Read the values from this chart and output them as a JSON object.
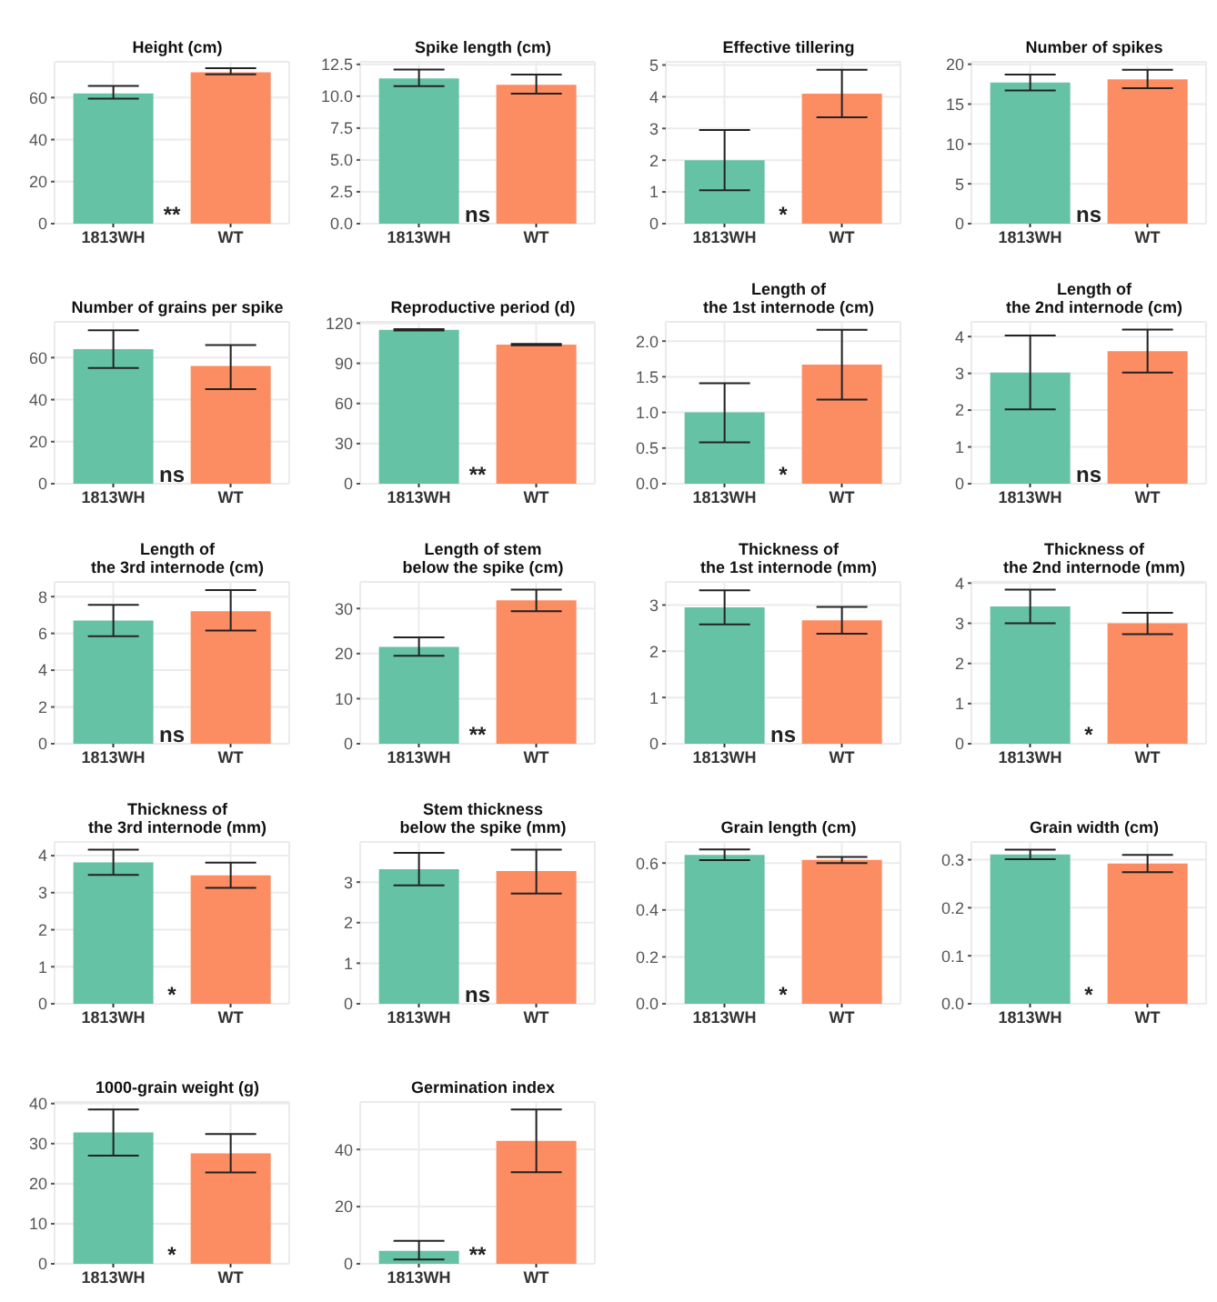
{
  "chart_data": [
    {
      "type": "bar",
      "title": "Height (cm)",
      "categories": [
        "1813WH",
        "WT"
      ],
      "values": [
        62,
        72
      ],
      "errors": [
        [
          59.5,
          65.5
        ],
        [
          71,
          74
        ]
      ],
      "colors": [
        "#66c2a5",
        "#fc8d62"
      ],
      "ylim": [
        0,
        77
      ],
      "yticks": [
        0,
        20,
        40,
        60
      ],
      "grid": true,
      "annotations": [
        "**"
      ]
    },
    {
      "type": "bar",
      "title": "Spike length (cm)",
      "categories": [
        "1813WH",
        "WT"
      ],
      "values": [
        11.4,
        10.9
      ],
      "errors": [
        [
          10.8,
          12.1
        ],
        [
          10.2,
          11.7
        ]
      ],
      "colors": [
        "#66c2a5",
        "#fc8d62"
      ],
      "ylim": [
        0,
        12.7
      ],
      "yticks": [
        {
          "value": 0,
          "label": "0.0"
        },
        {
          "value": 2.5,
          "label": "2.5"
        },
        {
          "value": 5,
          "label": "5.0"
        },
        {
          "value": 7.5,
          "label": "7.5"
        },
        {
          "value": 10,
          "label": "10.0"
        },
        {
          "value": 12.5,
          "label": "12.5"
        }
      ],
      "grid": true,
      "annotations": [
        "ns"
      ]
    },
    {
      "type": "bar",
      "title": "Effective tillering",
      "categories": [
        "1813WH",
        "WT"
      ],
      "values": [
        2.0,
        4.1
      ],
      "errors": [
        [
          1.05,
          2.95
        ],
        [
          3.35,
          4.85
        ]
      ],
      "colors": [
        "#66c2a5",
        "#fc8d62"
      ],
      "ylim": [
        0,
        5.1
      ],
      "yticks": [
        0,
        1,
        2,
        3,
        4,
        5
      ],
      "grid": true,
      "annotations": [
        "*"
      ]
    },
    {
      "type": "bar",
      "title": "Number of spikes",
      "categories": [
        "1813WH",
        "WT"
      ],
      "values": [
        17.7,
        18.1
      ],
      "errors": [
        [
          16.7,
          18.7
        ],
        [
          17,
          19.3
        ]
      ],
      "colors": [
        "#66c2a5",
        "#fc8d62"
      ],
      "ylim": [
        0,
        20.3
      ],
      "yticks": [
        0,
        5,
        10,
        15,
        20
      ],
      "grid": true,
      "annotations": [
        "ns"
      ]
    },
    {
      "type": "bar",
      "title": "Number of grains per spike",
      "categories": [
        "1813WH",
        "WT"
      ],
      "values": [
        64,
        56
      ],
      "errors": [
        [
          55,
          73
        ],
        [
          45,
          66
        ]
      ],
      "colors": [
        "#66c2a5",
        "#fc8d62"
      ],
      "ylim": [
        0,
        77
      ],
      "yticks": [
        0,
        20,
        40,
        60
      ],
      "grid": true,
      "annotations": [
        "ns"
      ]
    },
    {
      "type": "bar",
      "title": "Reproductive period (d)",
      "categories": [
        "1813WH",
        "WT"
      ],
      "values": [
        115,
        104
      ],
      "errors": [
        [
          114.5,
          115.5
        ],
        [
          103.5,
          104.5
        ]
      ],
      "colors": [
        "#66c2a5",
        "#fc8d62"
      ],
      "ylim": [
        0,
        121
      ],
      "yticks": [
        0,
        30,
        60,
        90,
        120
      ],
      "grid": true,
      "annotations": [
        "**"
      ]
    },
    {
      "type": "bar",
      "title": "Length of\nthe 1st internode (cm)",
      "categories": [
        "1813WH",
        "WT"
      ],
      "values": [
        1.0,
        1.67
      ],
      "errors": [
        [
          0.58,
          1.41
        ],
        [
          1.18,
          2.16
        ]
      ],
      "colors": [
        "#66c2a5",
        "#fc8d62"
      ],
      "ylim": [
        0,
        2.27
      ],
      "yticks": [
        {
          "value": 0,
          "label": "0.0"
        },
        {
          "value": 0.5,
          "label": "0.5"
        },
        {
          "value": 1,
          "label": "1.0"
        },
        {
          "value": 1.5,
          "label": "1.5"
        },
        {
          "value": 2,
          "label": "2.0"
        }
      ],
      "grid": true,
      "annotations": [
        "*"
      ]
    },
    {
      "type": "bar",
      "title": "Length of\nthe 2nd internode (cm)",
      "categories": [
        "1813WH",
        "WT"
      ],
      "values": [
        3.02,
        3.6
      ],
      "errors": [
        [
          2.02,
          4.03
        ],
        [
          3.02,
          4.19
        ]
      ],
      "colors": [
        "#66c2a5",
        "#fc8d62"
      ],
      "ylim": [
        0,
        4.4
      ],
      "yticks": [
        0,
        1,
        2,
        3,
        4
      ],
      "grid": true,
      "annotations": [
        "ns"
      ]
    },
    {
      "type": "bar",
      "title": "Length of\nthe 3rd internode (cm)",
      "categories": [
        "1813WH",
        "WT"
      ],
      "values": [
        6.7,
        7.2
      ],
      "errors": [
        [
          5.85,
          7.55
        ],
        [
          6.15,
          8.35
        ]
      ],
      "colors": [
        "#66c2a5",
        "#fc8d62"
      ],
      "ylim": [
        0,
        8.8
      ],
      "yticks": [
        0,
        2,
        4,
        6,
        8
      ],
      "grid": true,
      "annotations": [
        "ns"
      ]
    },
    {
      "type": "bar",
      "title": "Length of stem\nbelow the spike (cm)",
      "categories": [
        "1813WH",
        "WT"
      ],
      "values": [
        21.5,
        31.8
      ],
      "errors": [
        [
          19.5,
          23.6
        ],
        [
          29.4,
          34.2
        ]
      ],
      "colors": [
        "#66c2a5",
        "#fc8d62"
      ],
      "ylim": [
        0,
        35.9
      ],
      "yticks": [
        0,
        10,
        20,
        30
      ],
      "grid": true,
      "annotations": [
        "**"
      ]
    },
    {
      "type": "bar",
      "title": "Thickness of\nthe 1st internode (mm)",
      "categories": [
        "1813WH",
        "WT"
      ],
      "values": [
        2.95,
        2.67
      ],
      "errors": [
        [
          2.58,
          3.32
        ],
        [
          2.38,
          2.96
        ]
      ],
      "colors": [
        "#66c2a5",
        "#fc8d62"
      ],
      "ylim": [
        0,
        3.5
      ],
      "yticks": [
        0,
        1,
        2,
        3
      ],
      "grid": true,
      "annotations": [
        "ns"
      ]
    },
    {
      "type": "bar",
      "title": "Thickness of\nthe 2nd internode (mm)",
      "categories": [
        "1813WH",
        "WT"
      ],
      "values": [
        3.42,
        3.0
      ],
      "errors": [
        [
          3.0,
          3.84
        ],
        [
          2.73,
          3.26
        ]
      ],
      "colors": [
        "#66c2a5",
        "#fc8d62"
      ],
      "ylim": [
        0,
        4.03
      ],
      "yticks": [
        0,
        1,
        2,
        3,
        4
      ],
      "grid": true,
      "annotations": [
        "*"
      ]
    },
    {
      "type": "bar",
      "title": "Thickness of\nthe 3rd internode (mm)",
      "categories": [
        "1813WH",
        "WT"
      ],
      "values": [
        3.82,
        3.47
      ],
      "errors": [
        [
          3.48,
          4.16
        ],
        [
          3.13,
          3.81
        ]
      ],
      "colors": [
        "#66c2a5",
        "#fc8d62"
      ],
      "ylim": [
        0,
        4.37
      ],
      "yticks": [
        0,
        1,
        2,
        3,
        4
      ],
      "grid": true,
      "annotations": [
        "*"
      ]
    },
    {
      "type": "bar",
      "title": "Stem thickness\nbelow the spike (mm)",
      "categories": [
        "1813WH",
        "WT"
      ],
      "values": [
        3.32,
        3.27
      ],
      "errors": [
        [
          2.92,
          3.72
        ],
        [
          2.72,
          3.8
        ]
      ],
      "colors": [
        "#66c2a5",
        "#fc8d62"
      ],
      "ylim": [
        0,
        3.99
      ],
      "yticks": [
        0,
        1,
        2,
        3
      ],
      "grid": true,
      "annotations": [
        "ns"
      ]
    },
    {
      "type": "bar",
      "title": "Grain length (cm)",
      "categories": [
        "1813WH",
        "WT"
      ],
      "values": [
        0.635,
        0.613
      ],
      "errors": [
        [
          0.612,
          0.658
        ],
        [
          0.6,
          0.626
        ]
      ],
      "colors": [
        "#66c2a5",
        "#fc8d62"
      ],
      "ylim": [
        0,
        0.69
      ],
      "yticks": [
        {
          "value": 0,
          "label": "0.0"
        },
        {
          "value": 0.2,
          "label": "0.2"
        },
        {
          "value": 0.4,
          "label": "0.4"
        },
        {
          "value": 0.6,
          "label": "0.6"
        }
      ],
      "grid": true,
      "annotations": [
        "*"
      ]
    },
    {
      "type": "bar",
      "title": "Grain width (cm)",
      "categories": [
        "1813WH",
        "WT"
      ],
      "values": [
        0.311,
        0.292
      ],
      "errors": [
        [
          0.301,
          0.321
        ],
        [
          0.274,
          0.31
        ]
      ],
      "colors": [
        "#66c2a5",
        "#fc8d62"
      ],
      "ylim": [
        0,
        0.337
      ],
      "yticks": [
        {
          "value": 0,
          "label": "0.0"
        },
        {
          "value": 0.1,
          "label": "0.1"
        },
        {
          "value": 0.2,
          "label": "0.2"
        },
        {
          "value": 0.3,
          "label": "0.3"
        }
      ],
      "grid": true,
      "annotations": [
        "*"
      ]
    },
    {
      "type": "bar",
      "title": "1000-grain weight (g)",
      "categories": [
        "1813WH",
        "WT"
      ],
      "values": [
        32.8,
        27.6
      ],
      "errors": [
        [
          27,
          38.5
        ],
        [
          22.8,
          32.4
        ]
      ],
      "colors": [
        "#66c2a5",
        "#fc8d62"
      ],
      "ylim": [
        0,
        40.4
      ],
      "yticks": [
        0,
        10,
        20,
        30,
        40
      ],
      "grid": true,
      "annotations": [
        "*"
      ]
    },
    {
      "type": "bar",
      "title": "Germination index",
      "categories": [
        "1813WH",
        "WT"
      ],
      "values": [
        4.5,
        43
      ],
      "errors": [
        [
          1.5,
          8
        ],
        [
          32,
          54
        ]
      ],
      "colors": [
        "#66c2a5",
        "#fc8d62"
      ],
      "ylim": [
        0,
        56.6
      ],
      "yticks": [
        0,
        20,
        40
      ],
      "grid": true,
      "annotations": [
        "**"
      ]
    }
  ]
}
